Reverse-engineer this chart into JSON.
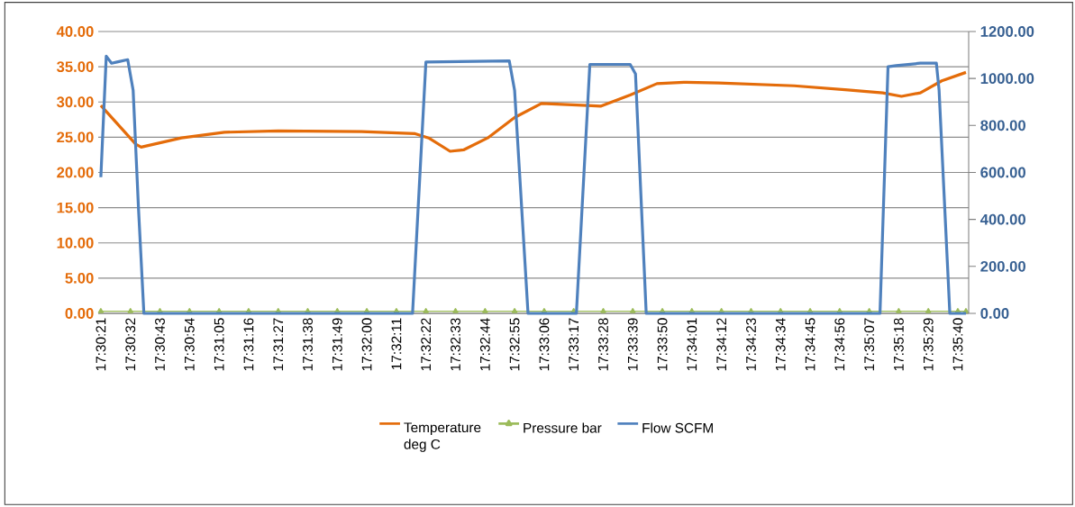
{
  "chart_data": {
    "type": "line",
    "legend": "bottom",
    "grid": "y",
    "xlim": [
      17.50556,
      17.59556
    ],
    "ylim": [
      0,
      40
    ],
    "yticks": [
      {
        "value": 0,
        "label": "0.00"
      },
      {
        "value": 5,
        "label": "5.00"
      },
      {
        "value": 10,
        "label": "10.00"
      },
      {
        "value": 15,
        "label": "15.00"
      },
      {
        "value": 20,
        "label": "20.00"
      },
      {
        "value": 25,
        "label": "25.00"
      },
      {
        "value": 30,
        "label": "30.00"
      },
      {
        "value": 35,
        "label": "35.00"
      },
      {
        "value": 40,
        "label": "40.00"
      }
    ],
    "y2lim": [
      0,
      1200
    ],
    "y2ticks": [
      {
        "value": 0,
        "label": "0.00"
      },
      {
        "value": 200,
        "label": "200.00"
      },
      {
        "value": 400,
        "label": "400.00"
      },
      {
        "value": 600,
        "label": "600.00"
      },
      {
        "value": 800,
        "label": "800.00"
      },
      {
        "value": 1000,
        "label": "1000.00"
      },
      {
        "value": 1200,
        "label": "1200.00"
      }
    ],
    "xticks": [
      {
        "value": 17.50583,
        "label": "17:30:21"
      },
      {
        "value": 17.50889,
        "label": "17:30:32"
      },
      {
        "value": 17.51194,
        "label": "17:30:43"
      },
      {
        "value": 17.515,
        "label": "17:30:54"
      },
      {
        "value": 17.51806,
        "label": "17:31:05"
      },
      {
        "value": 17.52111,
        "label": "17:31:16"
      },
      {
        "value": 17.52417,
        "label": "17:31:27"
      },
      {
        "value": 17.52722,
        "label": "17:31:38"
      },
      {
        "value": 17.53028,
        "label": "17:31:49"
      },
      {
        "value": 17.53333,
        "label": "17:32:00"
      },
      {
        "value": 17.53639,
        "label": "17:32:11"
      },
      {
        "value": 17.53944,
        "label": "17:32:22"
      },
      {
        "value": 17.5425,
        "label": "17:32:33"
      },
      {
        "value": 17.54556,
        "label": "17:32:44"
      },
      {
        "value": 17.54861,
        "label": "17:32:55"
      },
      {
        "value": 17.55167,
        "label": "17:33:06"
      },
      {
        "value": 17.55472,
        "label": "17:33:17"
      },
      {
        "value": 17.55778,
        "label": "17:33:28"
      },
      {
        "value": 17.56083,
        "label": "17:33:39"
      },
      {
        "value": 17.56389,
        "label": "17:33:50"
      },
      {
        "value": 17.56694,
        "label": "17:34:01"
      },
      {
        "value": 17.57,
        "label": "17:34:12"
      },
      {
        "value": 17.57306,
        "label": "17:34:23"
      },
      {
        "value": 17.57611,
        "label": "17:34:34"
      },
      {
        "value": 17.57917,
        "label": "17:34:45"
      },
      {
        "value": 17.58222,
        "label": "17:34:56"
      },
      {
        "value": 17.58528,
        "label": "17:35:07"
      },
      {
        "value": 17.58833,
        "label": "17:35:18"
      },
      {
        "value": 17.59139,
        "label": "17:35:29"
      },
      {
        "value": 17.59444,
        "label": "17:35:40"
      }
    ],
    "series": [
      {
        "name": "Temperature deg C",
        "color": "#e46c0a",
        "x": [
          17.50583,
          17.50944,
          17.51,
          17.51417,
          17.51861,
          17.52417,
          17.53278,
          17.53833,
          17.53972,
          17.54194,
          17.54333,
          17.54583,
          17.54861,
          17.55139,
          17.55611,
          17.5575,
          17.56056,
          17.56333,
          17.56611,
          17.56972,
          17.5775,
          17.58306,
          17.58667,
          17.58861,
          17.59056,
          17.59278,
          17.59528
        ],
        "values": [
          29.5,
          24.0,
          23.6,
          24.9,
          25.7,
          25.9,
          25.8,
          25.5,
          24.9,
          23.0,
          23.2,
          24.9,
          27.8,
          29.8,
          29.5,
          29.4,
          31.0,
          32.6,
          32.8,
          32.7,
          32.3,
          31.7,
          31.3,
          30.8,
          31.3,
          33.0,
          34.2
        ]
      },
      {
        "name": "Pressure bar",
        "color": "#9bbb59",
        "marker": "triangle",
        "x": [
          17.50583,
          17.50889,
          17.51194,
          17.515,
          17.51806,
          17.52111,
          17.52417,
          17.52722,
          17.53028,
          17.53333,
          17.53639,
          17.53944,
          17.5425,
          17.54556,
          17.54861,
          17.55167,
          17.55472,
          17.55778,
          17.56083,
          17.56389,
          17.56694,
          17.57,
          17.57306,
          17.57611,
          17.57917,
          17.58222,
          17.58528,
          17.58833,
          17.59139,
          17.59444,
          17.59528
        ],
        "values": [
          0.3,
          0.3,
          0.3,
          0.3,
          0.3,
          0.3,
          0.3,
          0.3,
          0.3,
          0.3,
          0.3,
          0.3,
          0.3,
          0.3,
          0.3,
          0.3,
          0.3,
          0.3,
          0.3,
          0.3,
          0.3,
          0.3,
          0.3,
          0.3,
          0.3,
          0.3,
          0.3,
          0.3,
          0.3,
          0.3,
          0.3
        ]
      },
      {
        "name": "Flow SCFM",
        "color": "#4f81bd",
        "axis": "y2",
        "x": [
          17.50583,
          17.50639,
          17.50694,
          17.5075,
          17.50861,
          17.50917,
          17.50972,
          17.51028,
          17.53806,
          17.53944,
          17.54806,
          17.54861,
          17.55,
          17.555,
          17.55639,
          17.56056,
          17.56111,
          17.56222,
          17.58639,
          17.58722,
          17.58806,
          17.59056,
          17.59222,
          17.5925,
          17.59361,
          17.59528
        ],
        "values": [
          580,
          1095,
          1065,
          1070,
          1080,
          950,
          450,
          0,
          0,
          1070,
          1075,
          950,
          0,
          0,
          1060,
          1060,
          1020,
          0,
          0,
          1050,
          1055,
          1065,
          1065,
          950,
          0,
          0
        ]
      }
    ]
  }
}
